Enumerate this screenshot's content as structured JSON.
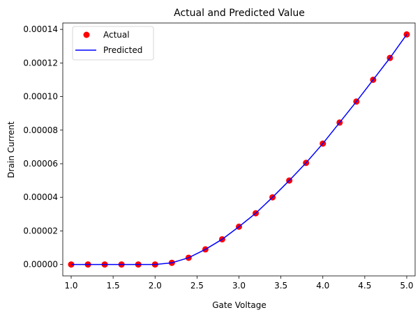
{
  "chart_data": {
    "type": "scatter",
    "title": "Actual and Predicted Value",
    "xlabel": "Gate Voltage",
    "ylabel": "Drain Current",
    "xlim": [
      0.9,
      5.1
    ],
    "ylim": [
      -6.8e-06,
      0.0001438
    ],
    "x_ticks": [
      "1.0",
      "1.5",
      "2.0",
      "2.5",
      "3.0",
      "3.5",
      "4.0",
      "4.5",
      "5.0"
    ],
    "y_ticks": [
      "0.00000",
      "0.00002",
      "0.00004",
      "0.00006",
      "0.00008",
      "0.00010",
      "0.00012",
      "0.00014"
    ],
    "grid": false,
    "legend_position": "upper-left",
    "series": [
      {
        "name": "Actual",
        "style": "markers",
        "color": "#ff0000",
        "x": [
          1.0,
          1.2,
          1.4,
          1.6,
          1.8,
          2.0,
          2.2,
          2.4,
          2.6,
          2.8,
          3.0,
          3.2,
          3.4,
          3.6,
          3.8,
          4.0,
          4.2,
          4.4,
          4.6,
          4.8,
          5.0
        ],
        "y": [
          0.0,
          0.0,
          0.0,
          0.0,
          0.0,
          0.0,
          1e-06,
          4e-06,
          9e-06,
          1.5e-05,
          2.25e-05,
          3.05e-05,
          4e-05,
          5e-05,
          6.05e-05,
          7.2e-05,
          8.45e-05,
          9.7e-05,
          0.00011,
          0.000123,
          0.000137
        ]
      },
      {
        "name": "Predicted",
        "style": "line",
        "color": "#0000ff",
        "x": [
          1.0,
          1.2,
          1.4,
          1.6,
          1.8,
          2.0,
          2.2,
          2.4,
          2.6,
          2.8,
          3.0,
          3.2,
          3.4,
          3.6,
          3.8,
          4.0,
          4.2,
          4.4,
          4.6,
          4.8,
          5.0
        ],
        "y": [
          0.0,
          0.0,
          0.0,
          0.0,
          0.0,
          0.0,
          1e-06,
          4e-06,
          9e-06,
          1.5e-05,
          2.25e-05,
          3.05e-05,
          4e-05,
          5e-05,
          6.05e-05,
          7.2e-05,
          8.45e-05,
          9.7e-05,
          0.00011,
          0.000123,
          0.000137
        ]
      }
    ]
  }
}
